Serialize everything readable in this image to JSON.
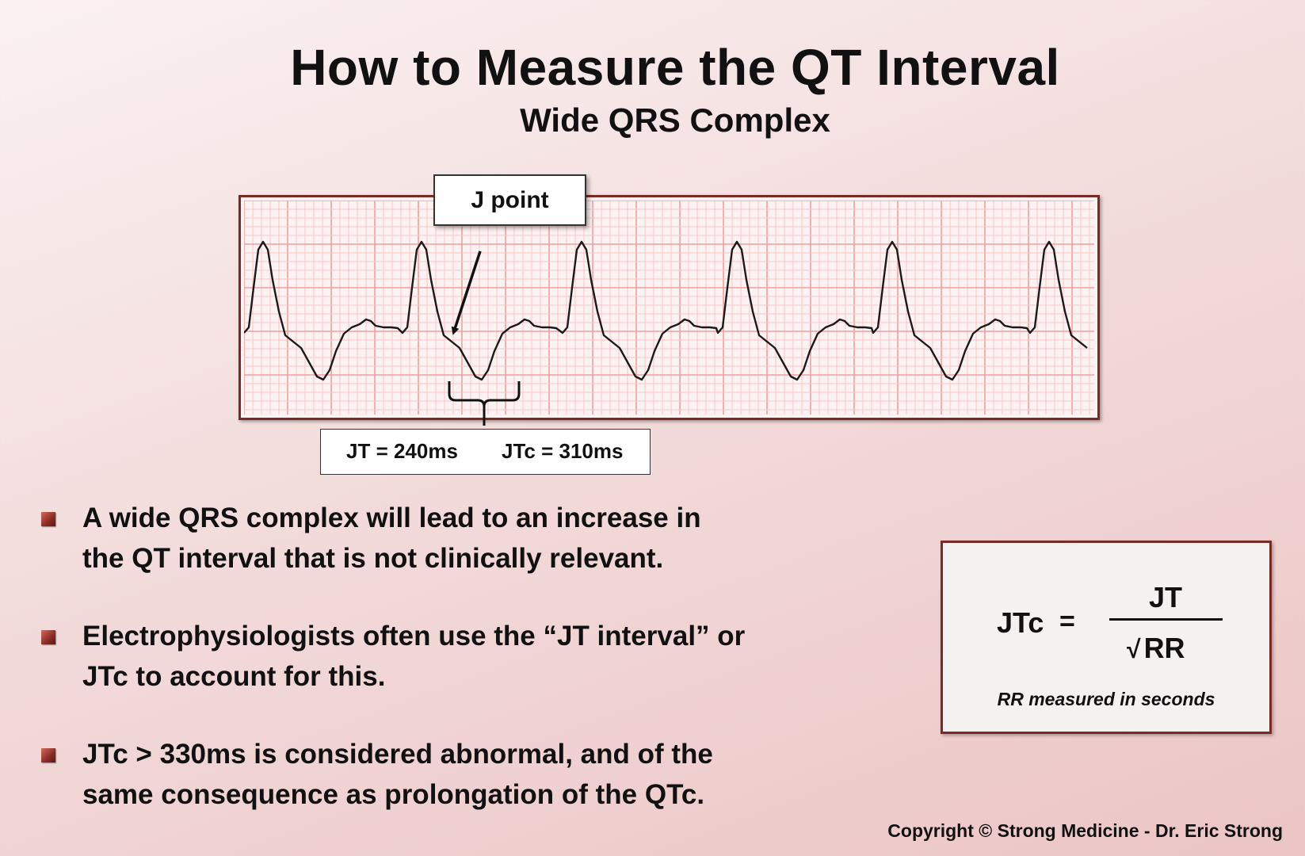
{
  "title": "How to Measure the QT Interval",
  "subtitle": "Wide QRS Complex",
  "ecg": {
    "callout_label": "J point",
    "jt_label": "JT = 240ms",
    "jtc_label": "JTc = 310ms"
  },
  "bullets": [
    {
      "line1": "A wide QRS complex will lead to an increase in",
      "line2": "the QT interval that is not clinically relevant."
    },
    {
      "line1": "Electrophysiologists often use the “JT interval” or",
      "line2": "JTc to account for this."
    },
    {
      "line1": "JTc > 330ms is considered abnormal, and of the",
      "line2": "same consequence as prolongation of the QTc."
    }
  ],
  "formula": {
    "lhs": "JTc",
    "equals": "=",
    "numerator": "JT",
    "root_symbol": "√",
    "denominator": "RR",
    "note": "RR measured in seconds"
  },
  "copyright": "Copyright © Strong Medicine - Dr. Eric Strong",
  "colors": {
    "frame": "#7a2a26",
    "grid_fine": "#f6c7c7",
    "grid_major": "#ef9f9f",
    "trace": "#1a1a1a"
  }
}
